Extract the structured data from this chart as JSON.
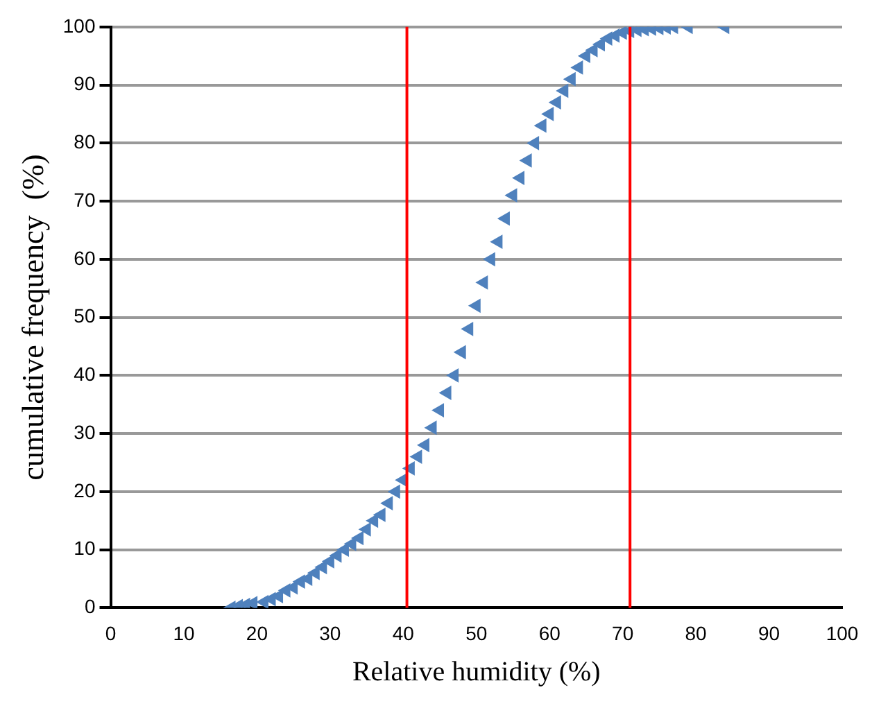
{
  "chart_data": {
    "type": "scatter",
    "xlabel": "Relative humidity (%)",
    "ylabel": "cumulative frequency  (%)",
    "x": [
      16.5,
      17.5,
      18.5,
      19.5,
      21,
      22,
      23,
      24,
      25,
      26,
      27,
      28,
      29,
      30,
      31,
      32,
      33,
      34,
      35,
      36,
      37,
      38,
      39,
      40,
      41,
      42,
      43,
      44,
      45,
      46,
      47,
      48,
      49,
      50,
      51,
      52,
      53,
      54,
      55,
      56,
      57,
      58,
      59,
      60,
      61,
      62,
      63,
      64,
      65,
      66,
      67,
      68,
      69,
      70,
      71,
      72,
      73,
      74,
      75,
      76,
      77,
      79,
      84
    ],
    "series": [
      {
        "color": "#4f81bd",
        "values": [
          0,
          0.3,
          0.5,
          0.8,
          1,
          1.5,
          2,
          3,
          3.5,
          4.5,
          5,
          6,
          7,
          8,
          9,
          10,
          11,
          12,
          13.5,
          15,
          16,
          18,
          20,
          22,
          24,
          26,
          28,
          31,
          34,
          37,
          40,
          44,
          48,
          52,
          56,
          60,
          63,
          67,
          71,
          74,
          77,
          80,
          83,
          85,
          87,
          89,
          91,
          93,
          95,
          96,
          97,
          98,
          98.5,
          99,
          99.3,
          99.5,
          99.6,
          99.7,
          99.8,
          99.9,
          100,
          100,
          100
        ]
      }
    ],
    "marker": "triangle",
    "xlim": [
      0,
      100
    ],
    "ylim": [
      0,
      100
    ],
    "xticks": [
      0,
      10,
      20,
      30,
      40,
      50,
      60,
      70,
      80,
      90,
      100
    ],
    "yticks": [
      0,
      10,
      20,
      30,
      40,
      50,
      60,
      70,
      80,
      90,
      100
    ],
    "grid": "y",
    "legend": false,
    "ref_lines": [
      {
        "axis": "x",
        "value": 40.5,
        "color": "#ff0000"
      },
      {
        "axis": "x",
        "value": 71,
        "color": "#ff0000"
      }
    ]
  }
}
